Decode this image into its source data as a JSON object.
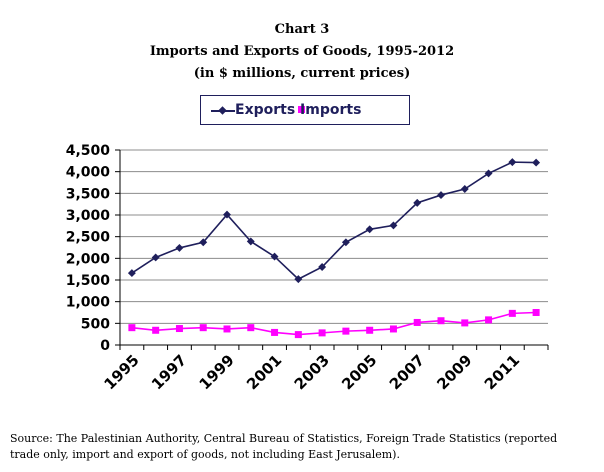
{
  "chart_label": "Chart 3",
  "title": "Imports and Exports of Goods, 1995-2012",
  "subtitle": "(in $ millions, current prices)",
  "legend_text": "Exports Imports",
  "source": "Source: The Palestinian Authority, Central Bureau of Statistics, Foreign Trade Statistics (reported trade only, import and export of goods, not including East Jerusalem).",
  "colors": {
    "exports": "#1f1f5c",
    "imports": "#ff00ff",
    "grid": "#8c8c8c"
  },
  "chart_data": {
    "type": "line",
    "title": "Imports and Exports of Goods, 1995-2012",
    "subtitle": "(in $ millions, current prices)",
    "xlabel": "",
    "ylabel": "",
    "x": [
      1995,
      1996,
      1997,
      1998,
      1999,
      2000,
      2001,
      2002,
      2003,
      2004,
      2005,
      2006,
      2007,
      2008,
      2009,
      2010,
      2011,
      2012
    ],
    "x_tick_labels": [
      "1995",
      "1997",
      "1999",
      "2001",
      "2003",
      "2005",
      "2007",
      "2009",
      "2011"
    ],
    "y_tick_labels": [
      "0",
      "500",
      "1,000",
      "1,500",
      "2,000",
      "2,500",
      "3,000",
      "3,500",
      "4,000",
      "4,500"
    ],
    "ylim": [
      0,
      4500
    ],
    "grid": true,
    "legend_position": "top",
    "series": [
      {
        "name": "Exports",
        "marker": "diamond",
        "values": [
          1660,
          2020,
          2240,
          2370,
          3010,
          2390,
          2040,
          1520,
          1800,
          2370,
          2670,
          2760,
          3280,
          3460,
          3600,
          3960,
          4220,
          4210
        ]
      },
      {
        "name": "Imports",
        "marker": "square",
        "values": [
          400,
          340,
          380,
          400,
          370,
          400,
          290,
          240,
          280,
          320,
          340,
          370,
          520,
          560,
          510,
          580,
          730,
          750
        ]
      }
    ]
  }
}
